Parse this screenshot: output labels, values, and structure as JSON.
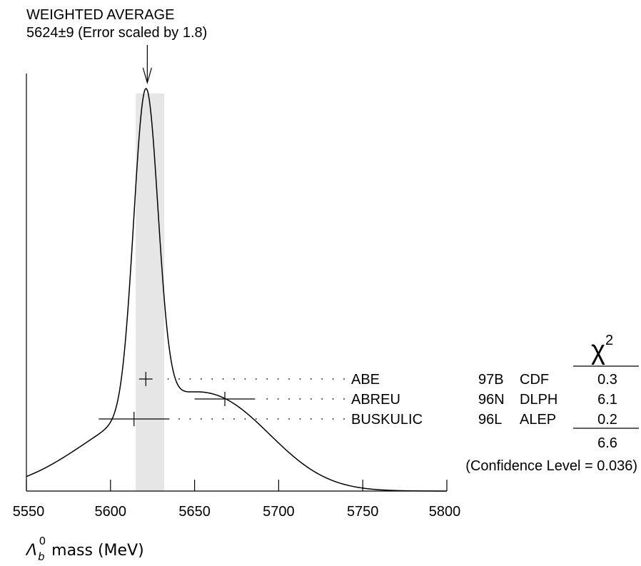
{
  "chart_data": {
    "type": "ideogram",
    "title": "WEIGHTED AVERAGE",
    "subtitle": "5624±9 (Error scaled by 1.8)",
    "xlabel_symbol": "Λ",
    "xlabel_sub": "b",
    "xlabel_sup": "0",
    "xlabel_rest": "mass (MeV)",
    "xlim": [
      5550,
      5800
    ],
    "x_ticks": [
      5550,
      5600,
      5650,
      5700,
      5750,
      5800
    ],
    "x_tick_labels": [
      "5550",
      "5600",
      "5650",
      "5700",
      "5750",
      "5800"
    ],
    "average": {
      "value": 5624,
      "error": 9
    },
    "band": [
      5615,
      5632
    ],
    "measurements": [
      {
        "author": "ABE",
        "ref": "97B",
        "experiment": "CDF",
        "value": 5621,
        "error": 4,
        "chi2": "0.3"
      },
      {
        "author": "ABREU",
        "ref": "96N",
        "experiment": "DLPH",
        "value": 5668,
        "error": 18,
        "chi2": "6.1"
      },
      {
        "author": "BUSKULIC",
        "ref": "96L",
        "experiment": "ALEP",
        "value": 5614,
        "error": 21,
        "chi2": "0.2"
      }
    ],
    "chi2_header": "χ",
    "chi2_header_sup": "2",
    "chi2_total": "6.6",
    "confidence_level": "(Confidence Level = 0.036)"
  }
}
